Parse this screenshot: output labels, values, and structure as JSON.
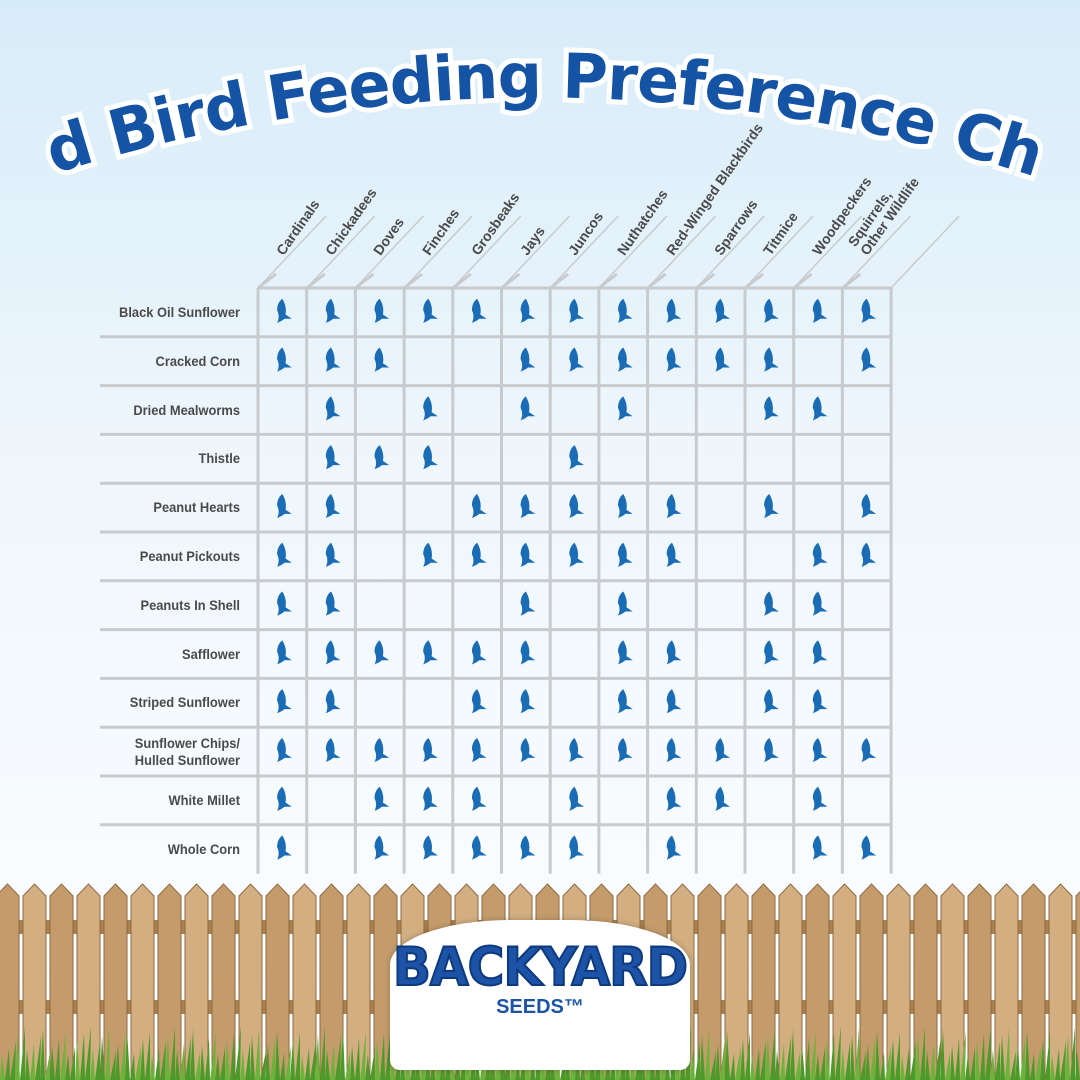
{
  "chart_data": {
    "type": "table",
    "title": "Wild Bird Feeding Preference Chart",
    "columns": [
      "Cardinals",
      "Chickadees",
      "Doves",
      "Finches",
      "Grosbeaks",
      "Jays",
      "Juncos",
      "Nuthatches",
      "Red-Winged Blackbirds",
      "Sparrows",
      "Titmice",
      "Woodpeckers",
      "Squirrels, Other Wildlife"
    ],
    "rows": [
      {
        "label": "Black Oil Sunflower",
        "marks": [
          1,
          1,
          1,
          1,
          1,
          1,
          1,
          1,
          1,
          1,
          1,
          1,
          1
        ]
      },
      {
        "label": "Cracked Corn",
        "marks": [
          1,
          1,
          1,
          0,
          0,
          1,
          1,
          1,
          1,
          1,
          1,
          0,
          1
        ]
      },
      {
        "label": "Dried Mealworms",
        "marks": [
          0,
          1,
          0,
          1,
          0,
          1,
          0,
          1,
          0,
          0,
          1,
          1,
          0
        ]
      },
      {
        "label": "Thistle",
        "marks": [
          0,
          1,
          1,
          1,
          0,
          0,
          1,
          0,
          0,
          0,
          0,
          0,
          0
        ]
      },
      {
        "label": "Peanut Hearts",
        "marks": [
          1,
          1,
          0,
          0,
          1,
          1,
          1,
          1,
          1,
          0,
          1,
          0,
          1
        ]
      },
      {
        "label": "Peanut Pickouts",
        "marks": [
          1,
          1,
          0,
          1,
          1,
          1,
          1,
          1,
          1,
          0,
          0,
          1,
          1
        ]
      },
      {
        "label": "Peanuts In Shell",
        "marks": [
          1,
          1,
          0,
          0,
          0,
          1,
          0,
          1,
          0,
          0,
          1,
          1,
          0
        ]
      },
      {
        "label": "Safflower",
        "marks": [
          1,
          1,
          1,
          1,
          1,
          1,
          0,
          1,
          1,
          0,
          1,
          1,
          0
        ]
      },
      {
        "label": "Striped Sunflower",
        "marks": [
          1,
          1,
          0,
          0,
          1,
          1,
          0,
          1,
          1,
          0,
          1,
          1,
          0
        ]
      },
      {
        "label": "Sunflower Chips/ Hulled Sunflower",
        "marks": [
          1,
          1,
          1,
          1,
          1,
          1,
          1,
          1,
          1,
          1,
          1,
          1,
          1
        ]
      },
      {
        "label": "White Millet",
        "marks": [
          1,
          0,
          1,
          1,
          1,
          0,
          1,
          0,
          1,
          1,
          0,
          1,
          0
        ]
      },
      {
        "label": "Whole Corn",
        "marks": [
          1,
          0,
          1,
          1,
          1,
          1,
          1,
          0,
          1,
          0,
          0,
          1,
          1
        ]
      }
    ],
    "mark_icon": "bird-icon",
    "mark_color": "#1a6db5"
  },
  "colors": {
    "title": "#1553a5",
    "grid": "#c8cbce",
    "label": "#4a4a4a",
    "fence": "#c9a577",
    "grass": "#4c9a2a"
  },
  "logo": {
    "main": "BACKYARD",
    "sub": "SEEDS™"
  }
}
